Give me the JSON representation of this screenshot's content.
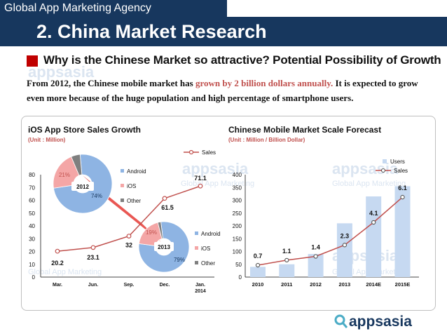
{
  "header": {
    "agency": "Global App Marketing Agency",
    "title": "2. China Market Research"
  },
  "subheading": "Why is the Chinese Market so attractive?  Potential Possibility of Growth",
  "paragraph": {
    "pre": "From 2012, the Chinese mobile market has ",
    "highlight": "grown by 2 billion dollars annually.",
    "post": " It is expected to grow even more because of the huge population and high percentage of smartphone users."
  },
  "watermark": {
    "brand": "appsasia",
    "tagline": "Global App Marketing"
  },
  "footer": {
    "brand": "appsasia"
  },
  "colors": {
    "navy": "#17375e",
    "red": "#c0504d",
    "blue": "#8eb4e3",
    "pink": "#f4a6a6",
    "gray": "#7f7f7f",
    "bar": "#c6d9f1"
  },
  "chart_data": [
    {
      "type": "line",
      "title": "iOS App Store Sales Growth",
      "unit": "(Unit : Million)",
      "legend": [
        "Sales"
      ],
      "categories": [
        "Mar.",
        "Jun.",
        "Sep.",
        "Dec.",
        "Jan.\n2014"
      ],
      "values": [
        20.2,
        23.1,
        32,
        61.5,
        71.1
      ],
      "labels": [
        "20.2",
        "23.1",
        "32",
        "61.5",
        "71.1"
      ],
      "ylim": [
        0,
        80
      ],
      "yticks": [
        "0",
        "10",
        "20",
        "30",
        "40",
        "50",
        "60",
        "70",
        "80"
      ],
      "pies": [
        {
          "year": "2012",
          "slices": [
            {
              "name": "Android",
              "value": 74,
              "label": "74%"
            },
            {
              "name": "iOS",
              "value": 21,
              "label": "21%"
            },
            {
              "name": "Other",
              "value": 5,
              "label": ""
            }
          ],
          "legend": [
            "Android",
            "iOS",
            "Other"
          ]
        },
        {
          "year": "2013",
          "slices": [
            {
              "name": "Android",
              "value": 79,
              "label": "79%"
            },
            {
              "name": "iOS",
              "value": 19,
              "label": "19%"
            },
            {
              "name": "Other",
              "value": 2,
              "label": ""
            }
          ],
          "legend": [
            "Android",
            "iOS",
            "Other"
          ]
        }
      ]
    },
    {
      "type": "bar",
      "title": "Chinese Mobile Market Scale Forecast",
      "unit": "(Unit : Million / Billion Dollar)",
      "legend": [
        "Users",
        "Sales"
      ],
      "categories": [
        "2010",
        "2011",
        "2012",
        "2013",
        "2014E",
        "2015E"
      ],
      "users": [
        40,
        50,
        90,
        210,
        315,
        355
      ],
      "sales": [
        0.7,
        1.1,
        1.4,
        2.3,
        4.1,
        6.1
      ],
      "sales_labels": [
        "0.7",
        "1.1",
        "1.4",
        "2.3",
        "4.1",
        "6.1"
      ],
      "ylim": [
        0,
        400
      ],
      "yticks": [
        "0",
        "50",
        "100",
        "150",
        "200",
        "250",
        "300",
        "350",
        "400"
      ]
    }
  ]
}
